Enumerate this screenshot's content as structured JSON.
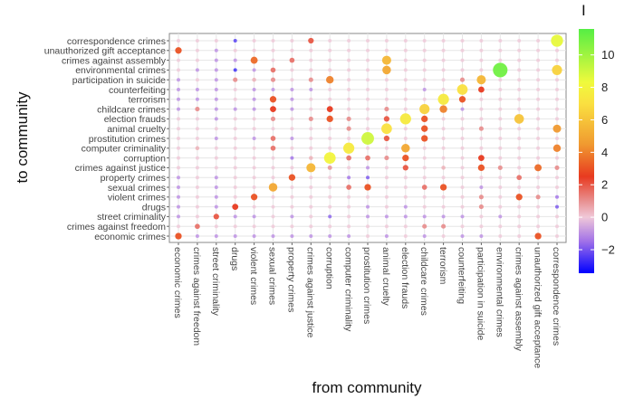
{
  "chart_data": {
    "type": "heatmap",
    "subtype": "bubble-matrix",
    "xlabel": "from community",
    "ylabel": "to community",
    "legend": {
      "title": "I",
      "position": "right",
      "ticks": [
        -2,
        0,
        2,
        4,
        6,
        8,
        10
      ],
      "range": [
        -3.4,
        11.6
      ],
      "colors": {
        "low": "#0000ff",
        "mid_low": "#a070e8",
        "zero": "#f0c8d8",
        "mid": "#e83a20",
        "mid_high": "#f09a30",
        "high_mid": "#ffff30",
        "high": "#55ee44"
      }
    },
    "grid": true,
    "x_categories": [
      "economic crimes",
      "crimes against freedom",
      "street criminality",
      "drugs",
      "violent crimes",
      "sexual crimes",
      "property crimes",
      "crimes against justice",
      "corruption",
      "computer criminality",
      "prostitution crimes",
      "animal cruelty",
      "election frauds",
      "childcare crimes",
      "terrorism",
      "counterfeiting",
      "participation in suicide",
      "environmental crimes",
      "crimes against assembly",
      "unauthorized gift acceptance",
      "correspondence crimes"
    ],
    "y_categories_top_to_bottom": [
      "correspondence crimes",
      "unauthorized gift acceptance",
      "crimes against assembly",
      "environmental crimes",
      "participation in suicide",
      "counterfeiting",
      "terrorism",
      "childcare crimes",
      "election frauds",
      "animal cruelty",
      "prostitution crimes",
      "computer criminality",
      "corruption",
      "crimes against justice",
      "property crimes",
      "sexual crimes",
      "violent crimes",
      "drugs",
      "street criminality",
      "crimes against freedom",
      "economic crimes"
    ],
    "values": [
      [
        0,
        0,
        0,
        -2.5,
        0,
        0,
        0,
        2,
        0,
        0,
        0,
        0,
        0,
        0,
        0,
        0,
        0,
        0,
        0,
        0,
        8.5
      ],
      [
        3,
        0,
        -1,
        0,
        0,
        0,
        0,
        0,
        0,
        0,
        0,
        0,
        0,
        0,
        0,
        0,
        0,
        0,
        0,
        0,
        0
      ],
      [
        0,
        0,
        -1,
        -1,
        3.5,
        0,
        1.5,
        0,
        0,
        0,
        0,
        5.5,
        0,
        0,
        0,
        0,
        0,
        0,
        0,
        0,
        0
      ],
      [
        0,
        -1,
        -1,
        -2.8,
        -1,
        1.5,
        0,
        0,
        0,
        0,
        0,
        5,
        0,
        0,
        0,
        0,
        0,
        11,
        0,
        0,
        6.5
      ],
      [
        -1,
        0,
        -1,
        1,
        0.5,
        1,
        0,
        1,
        4,
        0,
        0,
        0,
        0,
        0,
        0,
        1,
        5.5,
        0,
        0,
        0,
        0
      ],
      [
        -1,
        -1,
        -1,
        0,
        -1,
        -1,
        -1,
        -1,
        0,
        0,
        0,
        0,
        0,
        -1,
        0,
        7,
        2.5,
        0,
        0,
        0,
        0
      ],
      [
        -1,
        -1,
        -1,
        0,
        -1,
        3,
        -1,
        0,
        0,
        0,
        0,
        0,
        0,
        0,
        7.5,
        3,
        0,
        0,
        0,
        0,
        0
      ],
      [
        -1,
        1,
        -1,
        -1,
        -1,
        2.5,
        -1,
        0,
        2.5,
        0,
        0,
        1,
        0,
        6.5,
        4,
        -1,
        0,
        0,
        0,
        0,
        0
      ],
      [
        0,
        0,
        -1,
        0,
        0,
        1,
        0,
        1,
        3,
        1,
        0,
        2,
        7.5,
        3,
        0,
        0,
        0,
        0,
        6,
        0,
        0
      ],
      [
        0,
        0,
        0,
        0,
        0,
        0,
        0,
        0,
        0,
        1,
        0,
        7,
        0,
        3,
        0,
        0,
        1,
        0,
        0,
        0,
        4.5
      ],
      [
        0,
        0,
        -1,
        0,
        -1,
        1.5,
        -1,
        0,
        0,
        0,
        9,
        2,
        0,
        3,
        0,
        0,
        0,
        0,
        0,
        0,
        0
      ],
      [
        0,
        0.5,
        0,
        0,
        0,
        1.5,
        0,
        0,
        0,
        7.5,
        0,
        0,
        5,
        0,
        0,
        0,
        0,
        0,
        0,
        0,
        4
      ],
      [
        0,
        0,
        0,
        0,
        0,
        0,
        -1.5,
        0.5,
        8,
        1.5,
        1.5,
        1,
        3,
        0,
        0,
        0,
        2.5,
        0,
        0,
        0,
        0
      ],
      [
        0,
        0,
        0,
        0,
        0,
        0,
        0,
        5.5,
        0.8,
        0,
        -1,
        0,
        2,
        0,
        0.5,
        0,
        3,
        1,
        0,
        3.5,
        1
      ],
      [
        -1,
        0,
        -1,
        0,
        0,
        0,
        3,
        0,
        0,
        -1.5,
        -2,
        0,
        0,
        0,
        0,
        0,
        0,
        0,
        1.5,
        0,
        0
      ],
      [
        -1,
        0,
        -1,
        0,
        0,
        5,
        0,
        0,
        0,
        1.5,
        3,
        0,
        0,
        1.5,
        3,
        0,
        -1,
        0,
        0,
        0,
        0
      ],
      [
        -1,
        0,
        -1,
        0,
        3,
        0,
        0,
        0,
        0,
        0,
        0,
        0,
        0,
        0,
        0,
        0,
        1,
        0,
        3,
        1,
        -1.5
      ],
      [
        -1,
        0,
        -1,
        2.5,
        0,
        0,
        0,
        0,
        0,
        0,
        -1,
        0,
        -1,
        0,
        0,
        0,
        1,
        0,
        0,
        0,
        -2
      ],
      [
        -1,
        0,
        2,
        -1,
        -1,
        0,
        -1,
        0,
        -1.8,
        0,
        -1,
        -1,
        -1,
        -1,
        -1,
        -1,
        0,
        -1,
        0,
        0,
        0
      ],
      [
        0,
        1.5,
        0,
        0,
        0,
        0,
        0,
        0,
        0,
        0,
        0,
        0,
        0,
        1,
        1,
        0,
        0,
        0,
        0,
        0,
        0
      ],
      [
        3,
        -1,
        -1,
        -1,
        -1,
        -1,
        -1,
        -1,
        -1,
        -1,
        0,
        -1,
        0,
        -1,
        0,
        -1,
        -1,
        0,
        0,
        3,
        0
      ]
    ]
  }
}
